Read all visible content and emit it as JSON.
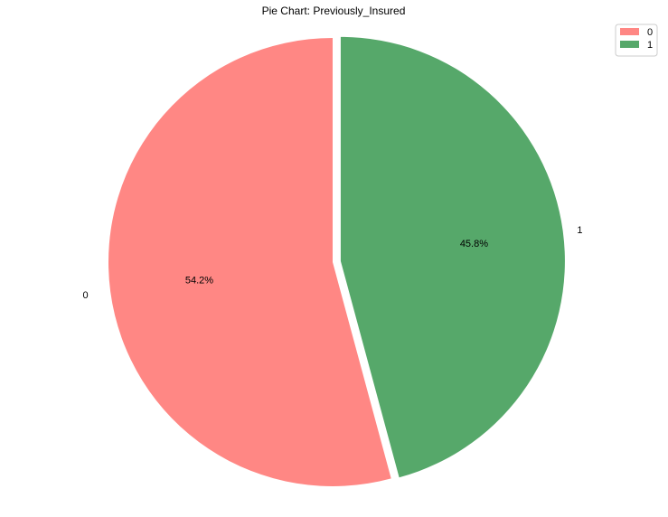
{
  "chart_data": {
    "type": "pie",
    "title": "Pie Chart: Previously_Insured",
    "categories": [
      "0",
      "1"
    ],
    "values": [
      54.2,
      45.8
    ],
    "labels": [
      "54.2%",
      "45.8%"
    ],
    "colors": [
      "#ff8784",
      "#56a86a"
    ],
    "explode": [
      0,
      1
    ],
    "start_angle": 90,
    "direction": "counterclockwise",
    "legend": {
      "position": "top-right",
      "entries": [
        "0",
        "1"
      ]
    }
  }
}
